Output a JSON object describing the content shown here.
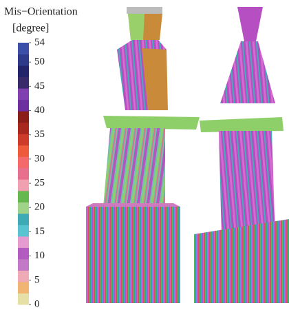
{
  "chart_data": {
    "type": "colorbar",
    "title": "Mis−Orientation",
    "unit": "[degree]",
    "ylim": [
      0,
      54
    ],
    "yticks": [
      0,
      5,
      10,
      15,
      20,
      25,
      30,
      35,
      40,
      45,
      50,
      54
    ],
    "colors": [
      "#e6dfa6",
      "#f2b472",
      "#f0a9b7",
      "#c27ac6",
      "#b35bc0",
      "#e59bd0",
      "#59c3d1",
      "#3fa9b6",
      "#9fd488",
      "#64b84d",
      "#f0a0b0",
      "#e8708f",
      "#f46a6a",
      "#ee5a3a",
      "#ce3b2a",
      "#a8281f",
      "#8a1f1a",
      "#6b2fa0",
      "#8040b0",
      "#3a2a6a",
      "#24246a",
      "#2e3a8a",
      "#3a4fa8"
    ]
  }
}
